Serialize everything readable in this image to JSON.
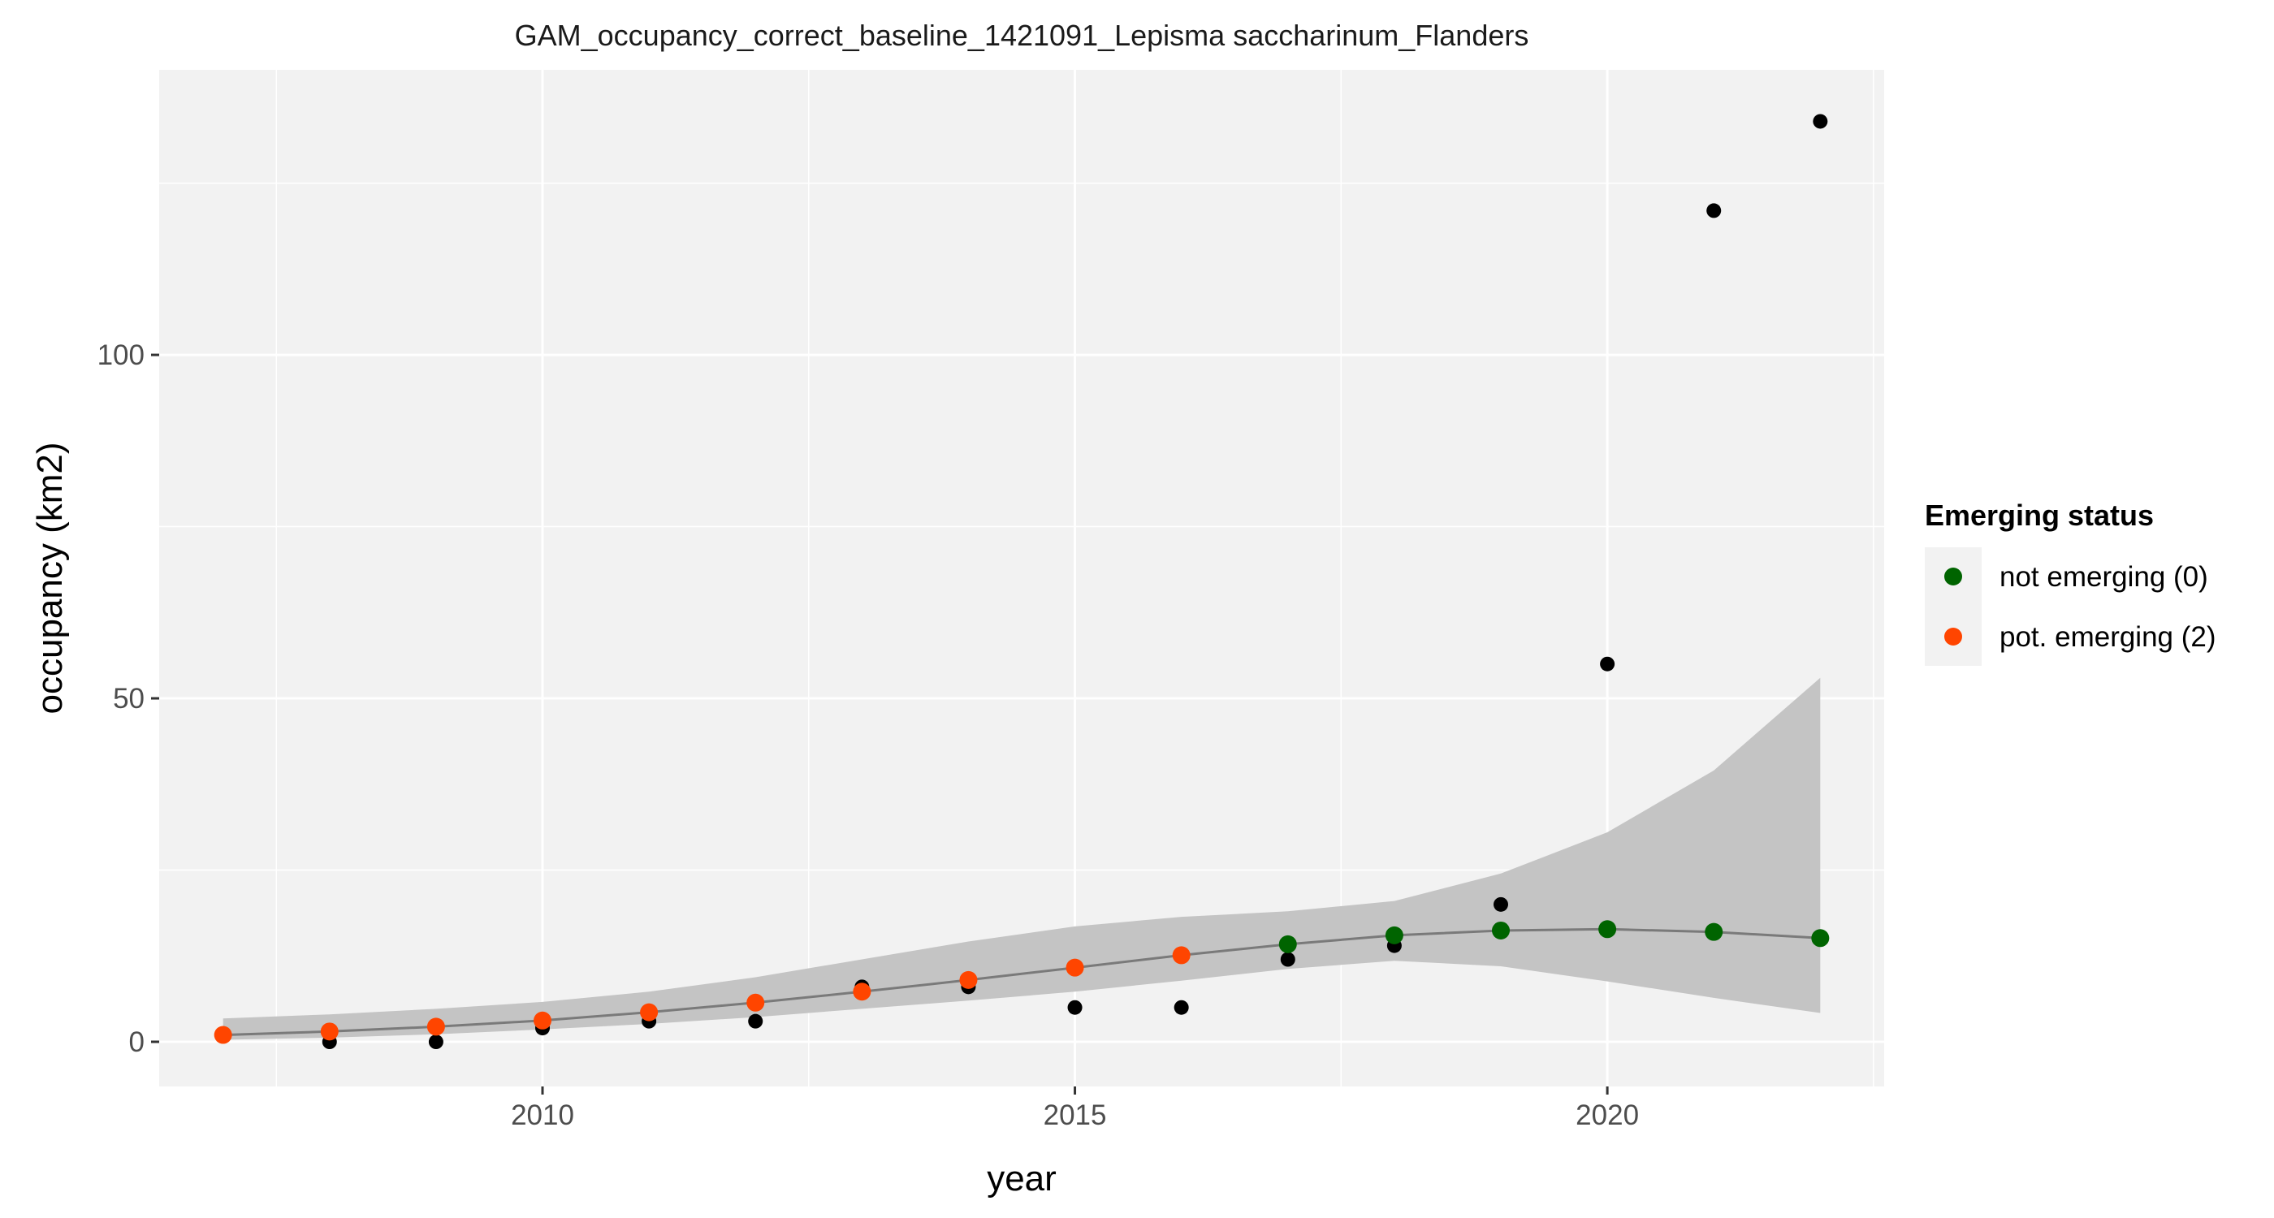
{
  "chart_data": {
    "type": "scatter",
    "title": "GAM_occupancy_correct_baseline_1421091_Lepisma saccharinum_Flanders",
    "xlabel": "year",
    "ylabel": "occupancy (km2)",
    "xlim": [
      2006.4,
      2022.6
    ],
    "ylim": [
      -6.5,
      141.5
    ],
    "x_ticks": [
      2010,
      2015,
      2020
    ],
    "y_ticks": [
      0,
      50,
      100
    ],
    "x_minor_ticks": [
      2007.5,
      2012.5,
      2017.5,
      2022.5
    ],
    "y_minor_ticks": [
      25,
      75,
      125
    ],
    "grid": true,
    "legend": {
      "title": "Emerging status",
      "position": "right",
      "entries": [
        {
          "label": "not emerging (0)",
          "color": "#006400"
        },
        {
          "label": "pot. emerging (2)",
          "color": "#ff4500"
        }
      ]
    },
    "observed": {
      "color": "#000000",
      "x": [
        2007,
        2008,
        2009,
        2010,
        2011,
        2012,
        2013,
        2014,
        2015,
        2016,
        2017,
        2018,
        2019,
        2020,
        2021,
        2022
      ],
      "y": [
        1,
        0,
        0,
        2,
        3,
        3,
        8,
        8,
        5,
        5,
        12,
        14,
        20,
        55,
        121,
        134
      ]
    },
    "fitted": {
      "x": [
        2007,
        2008,
        2009,
        2010,
        2011,
        2012,
        2013,
        2014,
        2015,
        2016,
        2017,
        2018,
        2019,
        2020,
        2021,
        2022
      ],
      "y": [
        1,
        1.5,
        2.2,
        3.1,
        4.3,
        5.7,
        7.3,
        9,
        10.8,
        12.6,
        14.2,
        15.5,
        16.2,
        16.4,
        16,
        15.1
      ],
      "lower": [
        0.3,
        0.6,
        1.1,
        1.8,
        2.6,
        3.6,
        4.8,
        6,
        7.3,
        8.9,
        10.6,
        11.8,
        11,
        8.8,
        6.4,
        4.2
      ],
      "upper": [
        3.4,
        4,
        4.8,
        5.8,
        7.3,
        9.4,
        12,
        14.6,
        16.8,
        18.2,
        19,
        20.5,
        24.5,
        30.5,
        39.5,
        53
      ],
      "status": [
        2,
        2,
        2,
        2,
        2,
        2,
        2,
        2,
        2,
        2,
        0,
        0,
        0,
        0,
        0,
        0
      ],
      "line_color": "#7a7a7a",
      "band_color": "#c4c4c4"
    },
    "panel_background": "#f2f2f2",
    "grid_color": "#ffffff"
  }
}
